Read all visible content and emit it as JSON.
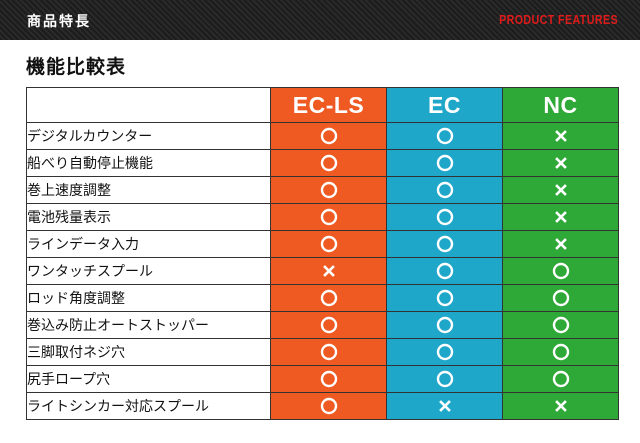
{
  "header": {
    "title_ja": "商品特長",
    "title_en": "PRODUCT FEATURES"
  },
  "section": {
    "title": "機能比較表"
  },
  "colors": {
    "ec_ls": "#ef5a22",
    "ec": "#1fa7c9",
    "nc": "#2ea836",
    "header_accent": "#e01b1b"
  },
  "legend_symbols": {
    "O": "circle (supported)",
    "X": "cross (not supported)"
  },
  "table": {
    "columns": [
      {
        "label": "EC-LS",
        "key": "ec_ls"
      },
      {
        "label": "EC",
        "key": "ec"
      },
      {
        "label": "NC",
        "key": "nc"
      }
    ],
    "rows": [
      {
        "feature": "デジタルカウンター",
        "values": [
          "O",
          "O",
          "X"
        ]
      },
      {
        "feature": "船べり自動停止機能",
        "values": [
          "O",
          "O",
          "X"
        ]
      },
      {
        "feature": "巻上速度調整",
        "values": [
          "O",
          "O",
          "X"
        ]
      },
      {
        "feature": "電池残量表示",
        "values": [
          "O",
          "O",
          "X"
        ]
      },
      {
        "feature": "ラインデータ入力",
        "values": [
          "O",
          "O",
          "X"
        ]
      },
      {
        "feature": "ワンタッチスプール",
        "values": [
          "X",
          "O",
          "O"
        ]
      },
      {
        "feature": "ロッド角度調整",
        "values": [
          "O",
          "O",
          "O"
        ]
      },
      {
        "feature": "巻込み防止オートストッパー",
        "values": [
          "O",
          "O",
          "O"
        ]
      },
      {
        "feature": "三脚取付ネジ穴",
        "values": [
          "O",
          "O",
          "O"
        ]
      },
      {
        "feature": "尻手ロープ穴",
        "values": [
          "O",
          "O",
          "O"
        ]
      },
      {
        "feature": "ライトシンカー対応スプール",
        "values": [
          "O",
          "X",
          "X"
        ]
      }
    ]
  }
}
